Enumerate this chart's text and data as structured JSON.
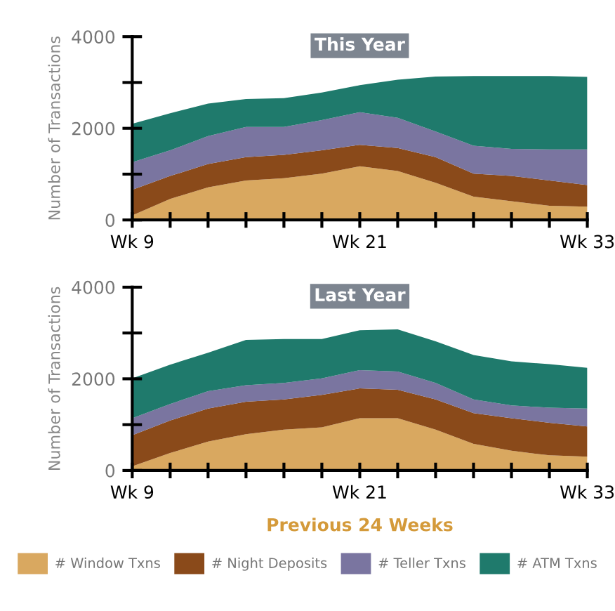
{
  "chart_data": [
    {
      "type": "area",
      "stacked": true,
      "title": "This Year",
      "ylabel": "Number of Transactions",
      "categories": [
        "Wk 9",
        null,
        null,
        null,
        null,
        null,
        "Wk 21",
        null,
        null,
        null,
        null,
        null,
        "Wk 33"
      ],
      "ylim": [
        0,
        4000
      ],
      "yticks": [
        0,
        2000,
        4000
      ],
      "grid": false,
      "legend": false,
      "series": [
        {
          "color": "#d9a860",
          "values": [
            100,
            460,
            710,
            860,
            910,
            1010,
            1170,
            1070,
            810,
            510,
            410,
            310,
            290
          ]
        },
        {
          "color": "#8a4a1a",
          "values": [
            560,
            500,
            510,
            510,
            510,
            510,
            470,
            500,
            560,
            500,
            550,
            550,
            470
          ]
        },
        {
          "color": "#7a75a0",
          "values": [
            600,
            560,
            610,
            660,
            610,
            660,
            710,
            660,
            560,
            610,
            590,
            680,
            780
          ]
        },
        {
          "color": "#1f7a6c",
          "values": [
            840,
            810,
            710,
            610,
            630,
            600,
            590,
            830,
            1200,
            1520,
            1590,
            1600,
            1580
          ]
        }
      ]
    },
    {
      "type": "area",
      "stacked": true,
      "title": "Last Year",
      "ylabel": "Number of Transactions",
      "xlabel": "Previous 24 Weeks",
      "categories": [
        "Wk 9",
        null,
        null,
        null,
        null,
        null,
        "Wk 21",
        null,
        null,
        null,
        null,
        null,
        "Wk 33"
      ],
      "ylim": [
        0,
        4000
      ],
      "yticks": [
        0,
        2000,
        4000
      ],
      "grid": false,
      "legend": "bottom",
      "series": [
        {
          "name": "# Window Txns",
          "color": "#d9a860",
          "values": [
            90,
            380,
            630,
            790,
            890,
            940,
            1140,
            1140,
            890,
            580,
            430,
            330,
            300
          ]
        },
        {
          "name": "# Night Deposits",
          "color": "#8a4a1a",
          "values": [
            680,
            710,
            720,
            710,
            660,
            710,
            650,
            620,
            660,
            670,
            710,
            710,
            660
          ]
        },
        {
          "name": "# Teller Txns",
          "color": "#7a75a0",
          "values": [
            370,
            360,
            380,
            360,
            360,
            360,
            400,
            400,
            360,
            300,
            280,
            330,
            390
          ]
        },
        {
          "name": "# ATM Txns",
          "color": "#1f7a6c",
          "values": [
            870,
            860,
            840,
            990,
            960,
            860,
            870,
            920,
            910,
            970,
            960,
            950,
            890
          ]
        }
      ]
    }
  ]
}
